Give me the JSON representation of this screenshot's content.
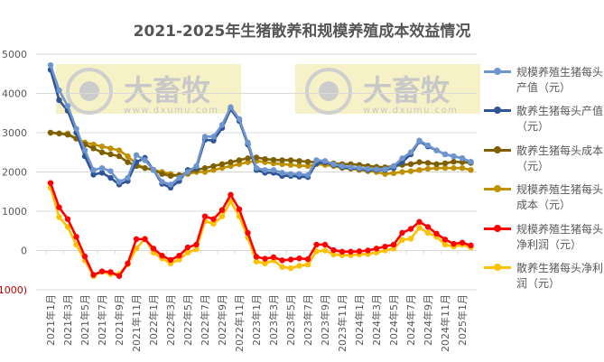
{
  "chart_data": {
    "type": "line",
    "title": "2021-2025年生猪散养和规模养殖成本效益情况",
    "xlabel": "",
    "ylabel": "",
    "ylim": [
      -1000,
      5000
    ],
    "yticks": [
      5000,
      4000,
      3000,
      2000,
      1000,
      0,
      -1000
    ],
    "ytick_labels": [
      "5000",
      "4000",
      "3000",
      "2000",
      "1000",
      "0",
      "(1000)"
    ],
    "negative_label_color": "#c00000",
    "grid": true,
    "legend_position": "right",
    "x": [
      "2021-01",
      "2021-02",
      "2021-03",
      "2021-04",
      "2021-05",
      "2021-06",
      "2021-07",
      "2021-08",
      "2021-09",
      "2021-10",
      "2021-11",
      "2021-12",
      "2022-01",
      "2022-02",
      "2022-03",
      "2022-04",
      "2022-05",
      "2022-06",
      "2022-07",
      "2022-08",
      "2022-09",
      "2022-10",
      "2022-11",
      "2022-12",
      "2023-01",
      "2023-02",
      "2023-03",
      "2023-04",
      "2023-05",
      "2023-06",
      "2023-07",
      "2023-08",
      "2023-09",
      "2023-10",
      "2023-11",
      "2023-12",
      "2024-01",
      "2024-02",
      "2024-03",
      "2024-04",
      "2024-05",
      "2024-06",
      "2024-07",
      "2024-08",
      "2024-09",
      "2024-10",
      "2024-11",
      "2024-12",
      "2025-01",
      "2025-02"
    ],
    "xtick_labels": [
      "2021年1月",
      "2021年3月",
      "2021年5月",
      "2021年7月",
      "2021年9月",
      "2021年11月",
      "2022年1月",
      "2022年3月",
      "2022年5月",
      "2022年7月",
      "2022年9月",
      "2022年11月",
      "2023年1月",
      "2023年3月",
      "2023年5月",
      "2023年7月",
      "2023年9月",
      "2023年11月",
      "2024年1月",
      "2024年3月",
      "2024年5月",
      "2024年7月",
      "2024年9月",
      "2024年11月",
      "2025年1月"
    ],
    "series": [
      {
        "name": "规模养殖生猪每头产值（元）",
        "color": "#6f95cf",
        "values": [
          4720,
          4080,
          3680,
          3100,
          2550,
          2050,
          2100,
          2020,
          1750,
          1850,
          2430,
          2300,
          2050,
          1750,
          1680,
          1850,
          2000,
          2150,
          2900,
          2900,
          3200,
          3650,
          3350,
          2750,
          2100,
          2050,
          2050,
          1980,
          1950,
          1950,
          1920,
          2300,
          2280,
          2200,
          2150,
          2120,
          2100,
          2080,
          2070,
          2070,
          2150,
          2350,
          2500,
          2800,
          2680,
          2550,
          2450,
          2400,
          2350,
          2260
        ]
      },
      {
        "name": "散养生猪每头产值（元）",
        "color": "#2f5597",
        "values": [
          4600,
          3830,
          3560,
          3000,
          2400,
          1930,
          1980,
          1850,
          1680,
          1770,
          2250,
          2360,
          2050,
          1700,
          1600,
          1770,
          2050,
          2100,
          2820,
          2800,
          3120,
          3600,
          3300,
          2700,
          2050,
          1980,
          1980,
          1900,
          1900,
          1880,
          1870,
          2220,
          2250,
          2180,
          2120,
          2100,
          2080,
          2050,
          2050,
          2050,
          2100,
          2250,
          2450,
          2780,
          2650,
          2550,
          2450,
          2400,
          2350,
          2250
        ]
      },
      {
        "name": "散养生猪每头成本（元）",
        "color": "#7f6000",
        "values": [
          3000,
          2980,
          2950,
          2850,
          2700,
          2600,
          2500,
          2450,
          2400,
          2250,
          2150,
          2100,
          2050,
          1950,
          1900,
          1920,
          1980,
          2050,
          2100,
          2150,
          2200,
          2250,
          2300,
          2350,
          2370,
          2330,
          2310,
          2300,
          2300,
          2280,
          2260,
          2250,
          2240,
          2220,
          2200,
          2200,
          2180,
          2150,
          2130,
          2120,
          2150,
          2180,
          2200,
          2250,
          2230,
          2200,
          2220,
          2260,
          2250,
          2230
        ]
      },
      {
        "name": "规模养殖生猪每头成本（元）",
        "color": "#bf9000",
        "values": [
          3000,
          2980,
          2980,
          2850,
          2750,
          2700,
          2650,
          2600,
          2550,
          2400,
          2200,
          2100,
          2050,
          2000,
          1950,
          1900,
          1950,
          2000,
          2000,
          2050,
          2100,
          2150,
          2200,
          2250,
          2280,
          2250,
          2220,
          2200,
          2180,
          2160,
          2150,
          2200,
          2180,
          2150,
          2100,
          2080,
          2050,
          2020,
          2000,
          1950,
          1970,
          2000,
          2020,
          2050,
          2080,
          2100,
          2100,
          2100,
          2100,
          2050
        ]
      },
      {
        "name": "规模养殖生猪每头净利润（元）",
        "color": "#ff0000",
        "values": [
          1720,
          1100,
          800,
          350,
          -150,
          -620,
          -530,
          -550,
          -650,
          -330,
          290,
          290,
          50,
          -130,
          -240,
          -130,
          80,
          150,
          870,
          800,
          1030,
          1420,
          1050,
          450,
          -160,
          -210,
          -170,
          -250,
          -230,
          -200,
          -220,
          150,
          150,
          10,
          -30,
          -30,
          -20,
          0,
          50,
          100,
          150,
          450,
          550,
          730,
          600,
          430,
          280,
          170,
          200,
          130
        ]
      },
      {
        "name": "散养生猪每头净利润（元）",
        "color": "#ffc000",
        "values": [
          1600,
          850,
          600,
          150,
          -250,
          -650,
          -540,
          -600,
          -600,
          -350,
          50,
          300,
          -50,
          -200,
          -330,
          -230,
          -50,
          30,
          750,
          680,
          870,
          1250,
          870,
          330,
          -280,
          -330,
          -250,
          -420,
          -450,
          -390,
          -360,
          -20,
          0,
          -100,
          -120,
          -120,
          -100,
          -90,
          -50,
          0,
          50,
          270,
          300,
          580,
          450,
          350,
          150,
          100,
          150,
          80
        ]
      }
    ]
  },
  "watermark": {
    "brand": "大畜牧",
    "url": "www.dxumu.com"
  }
}
